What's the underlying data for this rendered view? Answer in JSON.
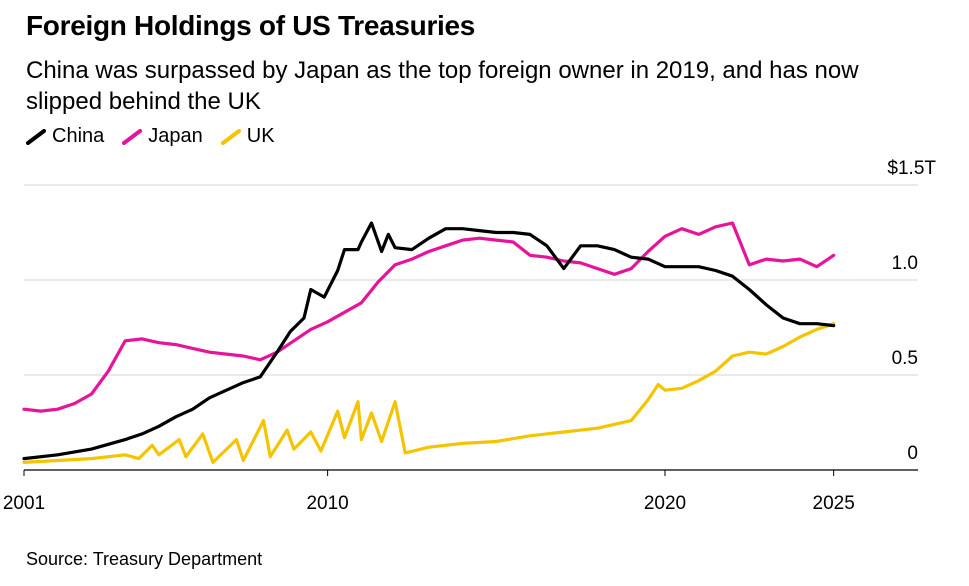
{
  "title": "Foreign Holdings of US Treasuries",
  "subtitle": "China was surpassed by Japan as the top foreign owner in 2019, and has now slipped behind the UK",
  "source": "Source: Treasury Department",
  "chart_data": {
    "type": "line",
    "title": "Foreign Holdings of US Treasuries",
    "subtitle": "China was surpassed by Japan as the top foreign owner in 2019, and has now slipped behind the UK",
    "xlim": [
      2001,
      2027.5
    ],
    "ylim": [
      0,
      1.5
    ],
    "y_ticks": [
      {
        "value": 0,
        "label": "0"
      },
      {
        "value": 0.5,
        "label": "0.5"
      },
      {
        "value": 1.0,
        "label": "1.0"
      },
      {
        "value": 1.5,
        "label": "$1.5T"
      }
    ],
    "x_ticks": [
      {
        "value": 2001,
        "label": "2001"
      },
      {
        "value": 2010,
        "label": "2010"
      },
      {
        "value": 2020,
        "label": "2020"
      },
      {
        "value": 2025,
        "label": "2025"
      }
    ],
    "legend_position": "top-left",
    "grid": true,
    "series": [
      {
        "name": "China",
        "color": "#000000",
        "points": [
          [
            2001.0,
            0.06
          ],
          [
            2002.0,
            0.08
          ],
          [
            2003.0,
            0.11
          ],
          [
            2004.0,
            0.16
          ],
          [
            2004.5,
            0.19
          ],
          [
            2005.0,
            0.23
          ],
          [
            2005.5,
            0.28
          ],
          [
            2006.0,
            0.32
          ],
          [
            2006.5,
            0.38
          ],
          [
            2007.0,
            0.42
          ],
          [
            2007.5,
            0.46
          ],
          [
            2008.0,
            0.49
          ],
          [
            2008.5,
            0.62
          ],
          [
            2008.9,
            0.73
          ],
          [
            2009.3,
            0.8
          ],
          [
            2009.5,
            0.95
          ],
          [
            2009.9,
            0.91
          ],
          [
            2010.3,
            1.05
          ],
          [
            2010.5,
            1.16
          ],
          [
            2010.9,
            1.16
          ],
          [
            2011.0,
            1.2
          ],
          [
            2011.3,
            1.3
          ],
          [
            2011.6,
            1.15
          ],
          [
            2011.8,
            1.24
          ],
          [
            2012.0,
            1.17
          ],
          [
            2012.5,
            1.16
          ],
          [
            2013.0,
            1.22
          ],
          [
            2013.5,
            1.27
          ],
          [
            2014.0,
            1.27
          ],
          [
            2014.5,
            1.26
          ],
          [
            2015.0,
            1.25
          ],
          [
            2015.5,
            1.25
          ],
          [
            2016.0,
            1.24
          ],
          [
            2016.5,
            1.18
          ],
          [
            2017.0,
            1.06
          ],
          [
            2017.5,
            1.18
          ],
          [
            2018.0,
            1.18
          ],
          [
            2018.5,
            1.16
          ],
          [
            2019.0,
            1.12
          ],
          [
            2019.5,
            1.11
          ],
          [
            2020.0,
            1.07
          ],
          [
            2020.5,
            1.07
          ],
          [
            2021.0,
            1.07
          ],
          [
            2021.5,
            1.05
          ],
          [
            2022.0,
            1.02
          ],
          [
            2022.5,
            0.95
          ],
          [
            2023.0,
            0.87
          ],
          [
            2023.5,
            0.8
          ],
          [
            2024.0,
            0.77
          ],
          [
            2024.5,
            0.77
          ],
          [
            2025.0,
            0.76
          ]
        ]
      },
      {
        "name": "Japan",
        "color": "#e6139b",
        "points": [
          [
            2001.0,
            0.32
          ],
          [
            2001.5,
            0.31
          ],
          [
            2002.0,
            0.32
          ],
          [
            2002.5,
            0.35
          ],
          [
            2003.0,
            0.4
          ],
          [
            2003.5,
            0.52
          ],
          [
            2004.0,
            0.68
          ],
          [
            2004.5,
            0.69
          ],
          [
            2005.0,
            0.67
          ],
          [
            2005.5,
            0.66
          ],
          [
            2006.0,
            0.64
          ],
          [
            2006.5,
            0.62
          ],
          [
            2007.0,
            0.61
          ],
          [
            2007.5,
            0.6
          ],
          [
            2008.0,
            0.58
          ],
          [
            2008.5,
            0.62
          ],
          [
            2009.0,
            0.68
          ],
          [
            2009.5,
            0.74
          ],
          [
            2010.0,
            0.78
          ],
          [
            2010.5,
            0.83
          ],
          [
            2011.0,
            0.88
          ],
          [
            2011.5,
            0.99
          ],
          [
            2012.0,
            1.08
          ],
          [
            2012.5,
            1.11
          ],
          [
            2013.0,
            1.15
          ],
          [
            2013.5,
            1.18
          ],
          [
            2014.0,
            1.21
          ],
          [
            2014.5,
            1.22
          ],
          [
            2015.0,
            1.21
          ],
          [
            2015.5,
            1.2
          ],
          [
            2016.0,
            1.13
          ],
          [
            2016.5,
            1.12
          ],
          [
            2017.0,
            1.1
          ],
          [
            2017.5,
            1.09
          ],
          [
            2018.0,
            1.06
          ],
          [
            2018.5,
            1.03
          ],
          [
            2019.0,
            1.06
          ],
          [
            2019.5,
            1.15
          ],
          [
            2020.0,
            1.23
          ],
          [
            2020.5,
            1.27
          ],
          [
            2021.0,
            1.24
          ],
          [
            2021.5,
            1.28
          ],
          [
            2022.0,
            1.3
          ],
          [
            2022.5,
            1.08
          ],
          [
            2023.0,
            1.11
          ],
          [
            2023.5,
            1.1
          ],
          [
            2024.0,
            1.11
          ],
          [
            2024.5,
            1.07
          ],
          [
            2025.0,
            1.13
          ]
        ]
      },
      {
        "name": "UK",
        "color": "#f5c400",
        "points": [
          [
            2001.0,
            0.04
          ],
          [
            2002.0,
            0.05
          ],
          [
            2003.0,
            0.06
          ],
          [
            2004.0,
            0.08
          ],
          [
            2004.4,
            0.06
          ],
          [
            2004.8,
            0.13
          ],
          [
            2005.0,
            0.08
          ],
          [
            2005.6,
            0.16
          ],
          [
            2005.8,
            0.07
          ],
          [
            2006.3,
            0.19
          ],
          [
            2006.6,
            0.04
          ],
          [
            2007.3,
            0.16
          ],
          [
            2007.5,
            0.05
          ],
          [
            2008.1,
            0.26
          ],
          [
            2008.3,
            0.07
          ],
          [
            2008.8,
            0.21
          ],
          [
            2009.0,
            0.11
          ],
          [
            2009.5,
            0.2
          ],
          [
            2009.8,
            0.1
          ],
          [
            2010.3,
            0.31
          ],
          [
            2010.5,
            0.17
          ],
          [
            2010.9,
            0.36
          ],
          [
            2011.0,
            0.16
          ],
          [
            2011.3,
            0.3
          ],
          [
            2011.6,
            0.15
          ],
          [
            2012.0,
            0.36
          ],
          [
            2012.3,
            0.09
          ],
          [
            2013.0,
            0.12
          ],
          [
            2014.0,
            0.14
          ],
          [
            2015.0,
            0.15
          ],
          [
            2016.0,
            0.18
          ],
          [
            2017.0,
            0.2
          ],
          [
            2018.0,
            0.22
          ],
          [
            2019.0,
            0.26
          ],
          [
            2019.5,
            0.37
          ],
          [
            2019.8,
            0.45
          ],
          [
            2020.0,
            0.42
          ],
          [
            2020.5,
            0.43
          ],
          [
            2021.0,
            0.47
          ],
          [
            2021.5,
            0.52
          ],
          [
            2022.0,
            0.6
          ],
          [
            2022.5,
            0.62
          ],
          [
            2023.0,
            0.61
          ],
          [
            2023.5,
            0.65
          ],
          [
            2024.0,
            0.7
          ],
          [
            2024.5,
            0.74
          ],
          [
            2025.0,
            0.77
          ]
        ]
      }
    ]
  }
}
